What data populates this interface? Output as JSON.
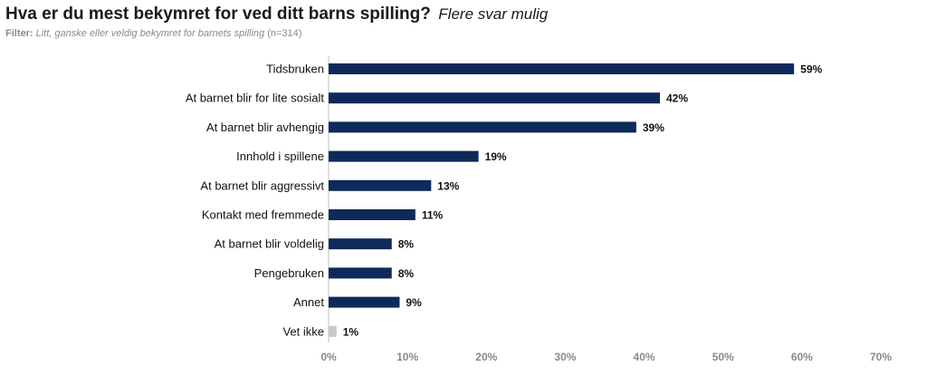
{
  "header": {
    "title": "Hva er du mest bekymret for ved ditt barns spilling?",
    "subtitle": "Flere svar mulig",
    "filter_label": "Filter:",
    "filter_text": "Litt, ganske eller veldig bekymret for barnets spilling",
    "filter_n": "(n=314)"
  },
  "colors": {
    "bar": "#0d2a5a",
    "bar_other": "#c8c8c8",
    "axis": "#bfbfbf"
  },
  "chart_data": {
    "type": "bar",
    "orientation": "horizontal",
    "categories": [
      "Tidsbruken",
      "At barnet blir for lite sosialt",
      "At barnet blir avhengig",
      "Innhold i spillene",
      "At barnet blir aggressivt",
      "Kontakt med fremmede",
      "At barnet blir voldelig",
      "Pengebruken",
      "Annet",
      "Vet ikke"
    ],
    "values": [
      59,
      42,
      39,
      19,
      13,
      11,
      8,
      8,
      9,
      1
    ],
    "value_labels": [
      "59%",
      "42%",
      "39%",
      "19%",
      "13%",
      "11%",
      "8%",
      "8%",
      "9%",
      "1%"
    ],
    "highlight_last_as_other": true,
    "xlim": [
      0,
      70
    ],
    "xticks": [
      0,
      10,
      20,
      30,
      40,
      50,
      60,
      70
    ],
    "xtick_labels": [
      "0%",
      "10%",
      "20%",
      "30%",
      "40%",
      "50%",
      "60%",
      "70%"
    ],
    "grid": false,
    "legend": "none"
  }
}
